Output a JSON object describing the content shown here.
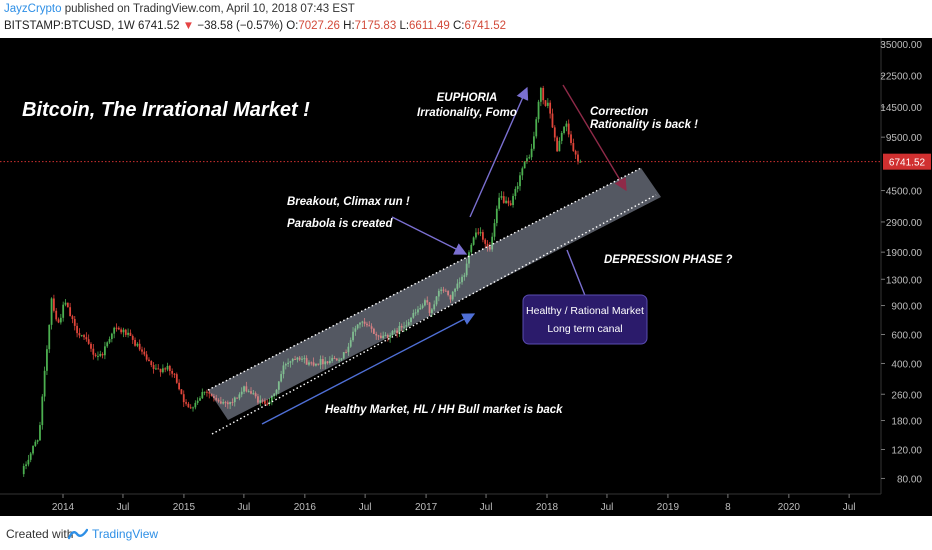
{
  "header": {
    "author": "JayzCrypto",
    "published": "published on TradingView.com, April 10, 2018 07:43 EST",
    "symbol": "BITSTAMP:BTCUSD, 1W",
    "last": "6741.52",
    "change": "−38.58 (−0.57%)",
    "o_label": "O:",
    "o_value": "7027.26",
    "h_label": "H:",
    "h_value": "7175.83",
    "l_label": "L:",
    "l_value": "6611.49",
    "c_label": "C:",
    "c_value": "6741.52"
  },
  "footer": {
    "created_with": "Created with",
    "brand": "TradingView"
  },
  "colors": {
    "background": "#000000",
    "up": "#4caf50",
    "down": "#e0453a",
    "channel": "#c8d2ea",
    "arrow_blue": "#4f6fd6",
    "arrow_purple": "#7a6fd0",
    "arrow_red": "#8f2a48",
    "price_line": "#d03030",
    "callout_box": "#2b1b6b"
  },
  "chart_data": {
    "type": "candlestick",
    "scale": "log",
    "interval": "1W",
    "ylim": [
      70,
      35000
    ],
    "y_ticks": [
      35000,
      22500,
      14500,
      9500,
      6741.52,
      4500,
      2900,
      1900,
      1300,
      900,
      600,
      400,
      260,
      180,
      120,
      80
    ],
    "y_tick_labels": [
      "35000.00",
      "22500.00",
      "14500.00",
      "9500.00",
      "6741.52",
      "4500.00",
      "2900.00",
      "1900.00",
      "1300.00",
      "900.00",
      "600.00",
      "400.00",
      "260.00",
      "180.00",
      "120.00",
      "80.00"
    ],
    "x_tick_labels": [
      "2014",
      "Jul",
      "2015",
      "Jul",
      "2016",
      "Jul",
      "2017",
      "Jul",
      "2018",
      "Jul",
      "2019",
      "8",
      "2020",
      "Jul"
    ],
    "last_price": 6741.52,
    "title": "Bitcoin, The Irrational Market !",
    "annotations": [
      {
        "id": "euphoria",
        "lines": [
          "EUPHORIA",
          "Irrationality, Fomo"
        ]
      },
      {
        "id": "correction",
        "lines": [
          "Correction",
          "Rationality is back !"
        ]
      },
      {
        "id": "breakout",
        "lines": [
          "Breakout, Climax run !"
        ]
      },
      {
        "id": "parabola",
        "lines": [
          "Parabola is created"
        ]
      },
      {
        "id": "depression",
        "lines": [
          "DEPRESSION PHASE ?"
        ]
      },
      {
        "id": "healthy-bull",
        "lines": [
          "Healthy Market, HL / HH Bull market is back"
        ]
      }
    ],
    "callout": {
      "lines": [
        "Healthy / Rational Market",
        "Long term canal"
      ]
    },
    "anchors": [
      {
        "date": "2013-09-01",
        "price": 85
      },
      {
        "date": "2013-10-25",
        "price": 150
      },
      {
        "date": "2013-11-10",
        "price": 350
      },
      {
        "date": "2013-12-01",
        "price": 1000
      },
      {
        "date": "2013-12-20",
        "price": 680
      },
      {
        "date": "2014-01-10",
        "price": 950
      },
      {
        "date": "2014-02-10",
        "price": 650
      },
      {
        "date": "2014-03-01",
        "price": 600
      },
      {
        "date": "2014-04-10",
        "price": 450
      },
      {
        "date": "2014-05-01",
        "price": 450
      },
      {
        "date": "2014-06-05",
        "price": 650
      },
      {
        "date": "2014-07-10",
        "price": 620
      },
      {
        "date": "2014-08-20",
        "price": 500
      },
      {
        "date": "2014-09-20",
        "price": 400
      },
      {
        "date": "2014-10-10",
        "price": 360
      },
      {
        "date": "2014-11-10",
        "price": 380
      },
      {
        "date": "2014-12-10",
        "price": 330
      },
      {
        "date": "2015-01-15",
        "price": 210
      },
      {
        "date": "2015-02-10",
        "price": 235
      },
      {
        "date": "2015-03-10",
        "price": 280
      },
      {
        "date": "2015-04-15",
        "price": 230
      },
      {
        "date": "2015-06-01",
        "price": 235
      },
      {
        "date": "2015-07-10",
        "price": 285
      },
      {
        "date": "2015-08-25",
        "price": 230
      },
      {
        "date": "2015-10-01",
        "price": 245
      },
      {
        "date": "2015-11-05",
        "price": 400
      },
      {
        "date": "2015-12-15",
        "price": 450
      },
      {
        "date": "2016-01-15",
        "price": 400
      },
      {
        "date": "2016-03-10",
        "price": 415
      },
      {
        "date": "2016-05-01",
        "price": 450
      },
      {
        "date": "2016-06-15",
        "price": 720
      },
      {
        "date": "2016-07-15",
        "price": 660
      },
      {
        "date": "2016-08-15",
        "price": 580
      },
      {
        "date": "2016-10-01",
        "price": 610
      },
      {
        "date": "2016-11-15",
        "price": 740
      },
      {
        "date": "2017-01-05",
        "price": 950
      },
      {
        "date": "2017-01-15",
        "price": 820
      },
      {
        "date": "2017-02-20",
        "price": 1150
      },
      {
        "date": "2017-03-20",
        "price": 1000
      },
      {
        "date": "2017-05-01",
        "price": 1400
      },
      {
        "date": "2017-05-25",
        "price": 2400
      },
      {
        "date": "2017-06-15",
        "price": 2600
      },
      {
        "date": "2017-07-15",
        "price": 1900
      },
      {
        "date": "2017-08-15",
        "price": 4200
      },
      {
        "date": "2017-09-15",
        "price": 3500
      },
      {
        "date": "2017-10-20",
        "price": 6000
      },
      {
        "date": "2017-11-20",
        "price": 8000
      },
      {
        "date": "2017-12-17",
        "price": 19000
      },
      {
        "date": "2017-12-30",
        "price": 14000
      },
      {
        "date": "2018-01-07",
        "price": 16000
      },
      {
        "date": "2018-02-05",
        "price": 7500
      },
      {
        "date": "2018-02-20",
        "price": 11000
      },
      {
        "date": "2018-03-05",
        "price": 11000
      },
      {
        "date": "2018-03-25",
        "price": 7800
      },
      {
        "date": "2018-04-08",
        "price": 6741.52
      }
    ]
  }
}
